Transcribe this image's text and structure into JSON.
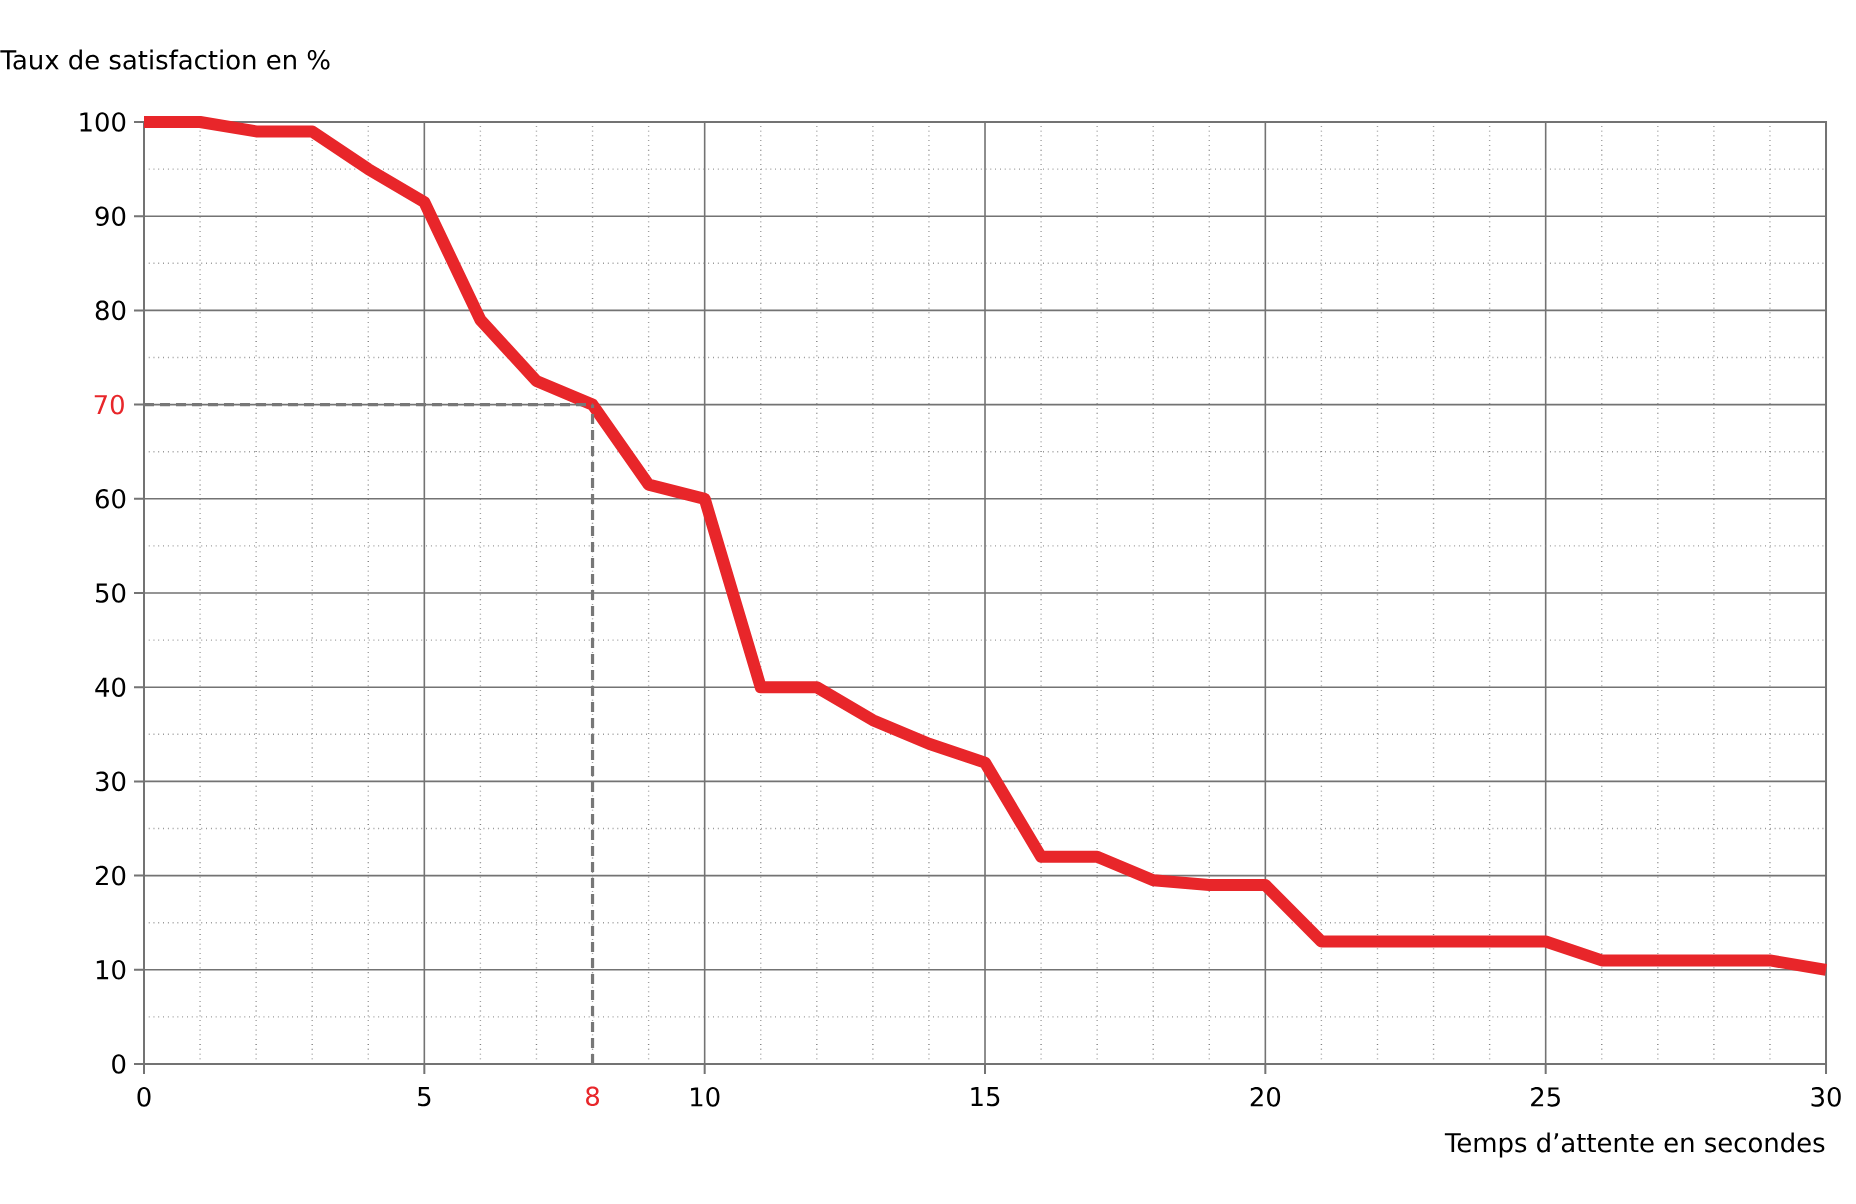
{
  "chart_data": {
    "type": "line",
    "xlabel": "Temps d’attente en secondes",
    "ylabel": "Taux de satisfaction en %",
    "x": [
      0,
      1,
      2,
      3,
      4,
      5,
      6,
      7,
      8,
      9,
      10,
      11,
      12,
      13,
      14,
      15,
      16,
      17,
      18,
      19,
      20,
      21,
      22,
      23,
      24,
      25,
      26,
      27,
      28,
      29,
      30
    ],
    "series": [
      {
        "color": "#e8262a",
        "values": [
          100,
          100,
          99,
          99,
          95,
          91.5,
          79,
          72.5,
          70,
          61.5,
          60,
          40,
          40,
          36.5,
          34,
          32,
          22,
          22,
          19.5,
          19,
          19,
          13,
          13,
          13,
          13,
          13,
          11,
          11,
          11,
          11,
          10
        ]
      }
    ],
    "xlim": [
      0,
      30
    ],
    "ylim": [
      0,
      100
    ],
    "xticks": [
      0,
      5,
      10,
      15,
      20,
      25,
      30
    ],
    "yticks": [
      0,
      10,
      20,
      30,
      40,
      50,
      60,
      {
        "value": 70,
        "label": null
      },
      80,
      90,
      100
    ],
    "grid": true,
    "marker": "none",
    "line_style": "solid",
    "ref_lines": [
      {
        "axis": "x",
        "value": 8,
        "label": "8",
        "color": "#777777",
        "line_style": "dashed"
      },
      {
        "axis": "y",
        "value": 70,
        "label": "70",
        "color": "#777777",
        "line_style": "dashed"
      }
    ]
  }
}
